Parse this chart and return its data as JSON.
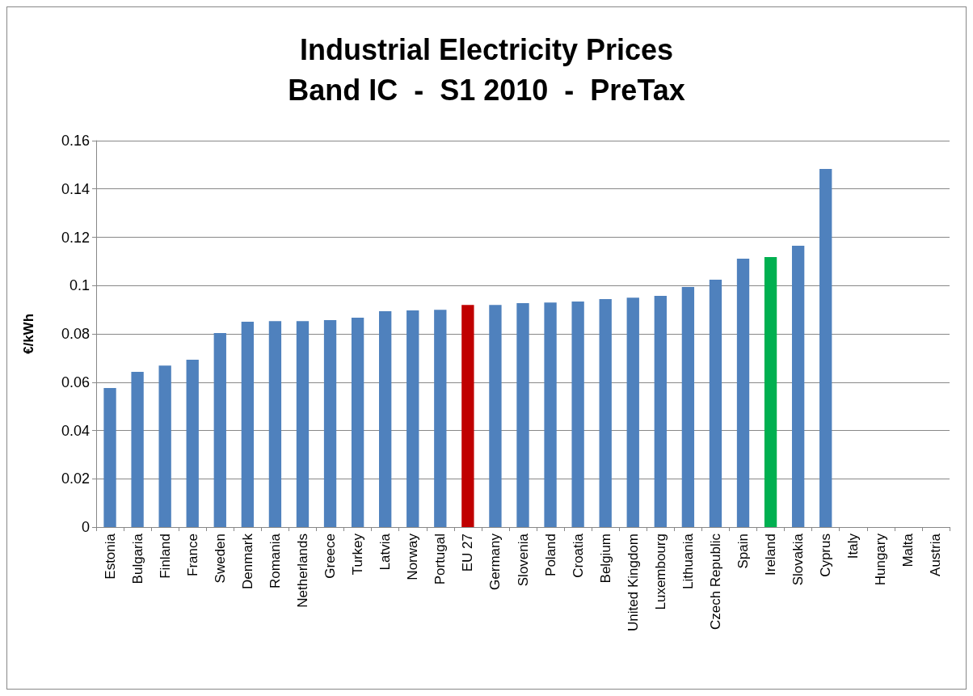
{
  "chart_data": {
    "type": "bar",
    "title": "Industrial Electricity Prices\nBand IC  -  S1 2010  -  PreTax",
    "ylabel": "€/kWh",
    "categories": [
      "Estonia",
      "Bulgaria",
      "Finland",
      "France",
      "Sweden",
      "Denmark",
      "Romania",
      "Netherlands",
      "Greece",
      "Turkey",
      "Latvia",
      "Norway",
      "Portugal",
      "EU 27",
      "Germany",
      "Slovenia",
      "Poland",
      "Croatia",
      "Belgium",
      "United Kingdom",
      "Luxembourg",
      "Lithuania",
      "Czech Republic",
      "Spain",
      "Ireland",
      "Slovakia",
      "Cyprus",
      "Italy",
      "Hungary",
      "Malta",
      "Austria"
    ],
    "values": [
      0.0576,
      0.0643,
      0.0669,
      0.0693,
      0.0803,
      0.085,
      0.0853,
      0.0853,
      0.0857,
      0.0867,
      0.0894,
      0.0897,
      0.09,
      0.092,
      0.092,
      0.0927,
      0.093,
      0.0934,
      0.0944,
      0.095,
      0.0957,
      0.0994,
      0.1024,
      0.1111,
      0.1118,
      0.1165,
      0.1483,
      null,
      null,
      null,
      null
    ],
    "colors": [
      "#4f81bd",
      "#4f81bd",
      "#4f81bd",
      "#4f81bd",
      "#4f81bd",
      "#4f81bd",
      "#4f81bd",
      "#4f81bd",
      "#4f81bd",
      "#4f81bd",
      "#4f81bd",
      "#4f81bd",
      "#4f81bd",
      "#c00000",
      "#4f81bd",
      "#4f81bd",
      "#4f81bd",
      "#4f81bd",
      "#4f81bd",
      "#4f81bd",
      "#4f81bd",
      "#4f81bd",
      "#4f81bd",
      "#4f81bd",
      "#00b050",
      "#4f81bd",
      "#4f81bd",
      "#4f81bd",
      "#4f81bd",
      "#4f81bd",
      "#4f81bd"
    ],
    "ylim": [
      0,
      0.16
    ],
    "yticks": [
      0,
      0.02,
      0.04,
      0.06,
      0.08,
      0.1,
      0.12,
      0.14,
      0.16
    ],
    "grid": "y"
  }
}
